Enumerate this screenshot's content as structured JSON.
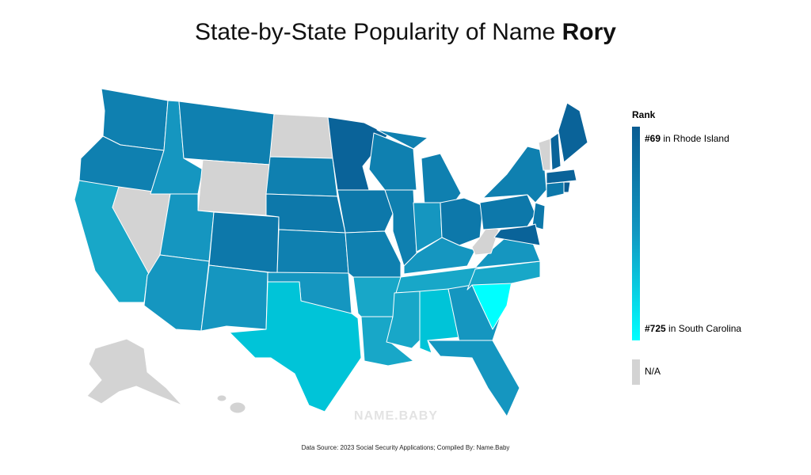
{
  "title": {
    "text": "State-by-State Popularity of Name",
    "name": "Rory"
  },
  "legend": {
    "title": "Rank",
    "top": {
      "rank": "#69",
      "state": "in Rhode Island"
    },
    "bottom": {
      "rank": "#725",
      "state": "in South Carolina"
    },
    "na": "N/A"
  },
  "watermark": "NAME.BABY",
  "footer": "Data Source: 2023 Social Security Applications; Compiled By: Name.Baby"
}
